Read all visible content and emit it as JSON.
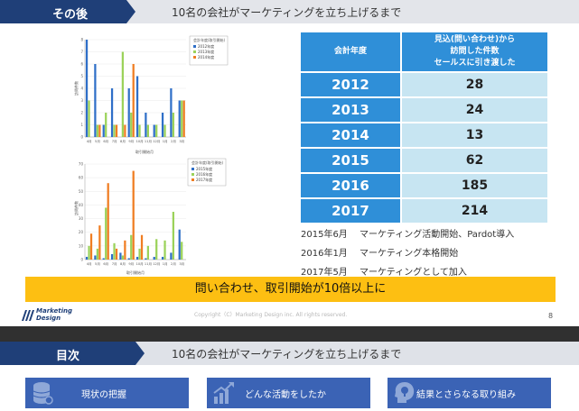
{
  "header1": {
    "label": "その後",
    "title": "10名の会社がマーケティングを立ち上げるまで"
  },
  "header2": {
    "label": "目次",
    "title": "10名の会社がマーケティングを立ち上げるまで"
  },
  "table": {
    "col1": "会計年度",
    "col2_lines": [
      "見込(問い合わせ)から",
      "訪問した件数",
      "セールスに引き渡した"
    ],
    "rows": [
      {
        "year": "2012",
        "value": "28"
      },
      {
        "year": "2013",
        "value": "24"
      },
      {
        "year": "2014",
        "value": "13"
      },
      {
        "year": "2015",
        "value": "62"
      },
      {
        "year": "2016",
        "value": "185"
      },
      {
        "year": "2017",
        "value": "214"
      }
    ]
  },
  "notes": [
    "2015年6月　 マーケティング活動開始、Pardot導入",
    "2016年1月　 マーケティング本格開始",
    "2017年5月　 マーケティングとして加入"
  ],
  "banner": "問い合わせ、取引開始が10倍以上に",
  "footer": {
    "logo_line1": "Marketing",
    "logo_line2": "Design",
    "copyright": "Copyright（C）Marketing Design inc.  All rights reserved.",
    "page": "8"
  },
  "cards": [
    {
      "label": "現状の把握",
      "icon": "database-icon"
    },
    {
      "label": "どんな活動をしたか",
      "icon": "growth-chart-icon"
    },
    {
      "label": "結果とさらなる取り組み",
      "icon": "lightbulb-head-icon"
    }
  ],
  "colors": {
    "navy": "#1f3f78",
    "blue": "#2f8fd8",
    "light": "#c7e5f2",
    "yellow": "#fdbf12",
    "card": "#3b63b5"
  },
  "chart_data": [
    {
      "type": "bar",
      "categories": [
        "4月",
        "5月",
        "6月",
        "7月",
        "8月",
        "9月",
        "10月",
        "11月",
        "12月",
        "1月",
        "2月",
        "3月"
      ],
      "ylabel": "訪問件数",
      "xlabel": "取引開始月",
      "legend_title": "会計年度(取引開始)",
      "legend_placement": "top-right",
      "ylim": [
        0,
        8
      ],
      "series": [
        {
          "name": "2012年度",
          "color": "#2f6fc8",
          "values": [
            8,
            6,
            1,
            4,
            0,
            4,
            5,
            2,
            1,
            2,
            4,
            3
          ]
        },
        {
          "name": "2013年度",
          "color": "#9bd25a",
          "values": [
            3,
            1,
            2,
            1,
            7,
            2,
            1,
            1,
            1,
            1,
            2,
            3
          ]
        },
        {
          "name": "2014年度",
          "color": "#f07d22",
          "values": [
            0,
            1,
            0,
            1,
            1,
            6,
            0,
            0,
            0,
            0,
            0,
            3
          ]
        }
      ]
    },
    {
      "type": "bar",
      "categories": [
        "4月",
        "5月",
        "6月",
        "7月",
        "8月",
        "9月",
        "10月",
        "11月",
        "12月",
        "1月",
        "2月",
        "3月"
      ],
      "ylabel": "訪問件数",
      "xlabel": "取引開始月",
      "legend_title": "会計年度(取引開始)",
      "legend_placement": "top-right",
      "ylim": [
        0,
        70
      ],
      "series": [
        {
          "name": "2015年度",
          "color": "#2f6fc8",
          "values": [
            2,
            3,
            1,
            4,
            5,
            1,
            2,
            1,
            2,
            2,
            5,
            22
          ]
        },
        {
          "name": "2016年度",
          "color": "#9bd25a",
          "values": [
            10,
            8,
            38,
            12,
            3,
            18,
            8,
            10,
            15,
            14,
            35,
            13
          ]
        },
        {
          "name": "2017年度",
          "color": "#f07d22",
          "values": [
            19,
            25,
            56,
            8,
            14,
            65,
            18,
            0,
            0,
            0,
            0,
            0
          ]
        }
      ]
    }
  ]
}
